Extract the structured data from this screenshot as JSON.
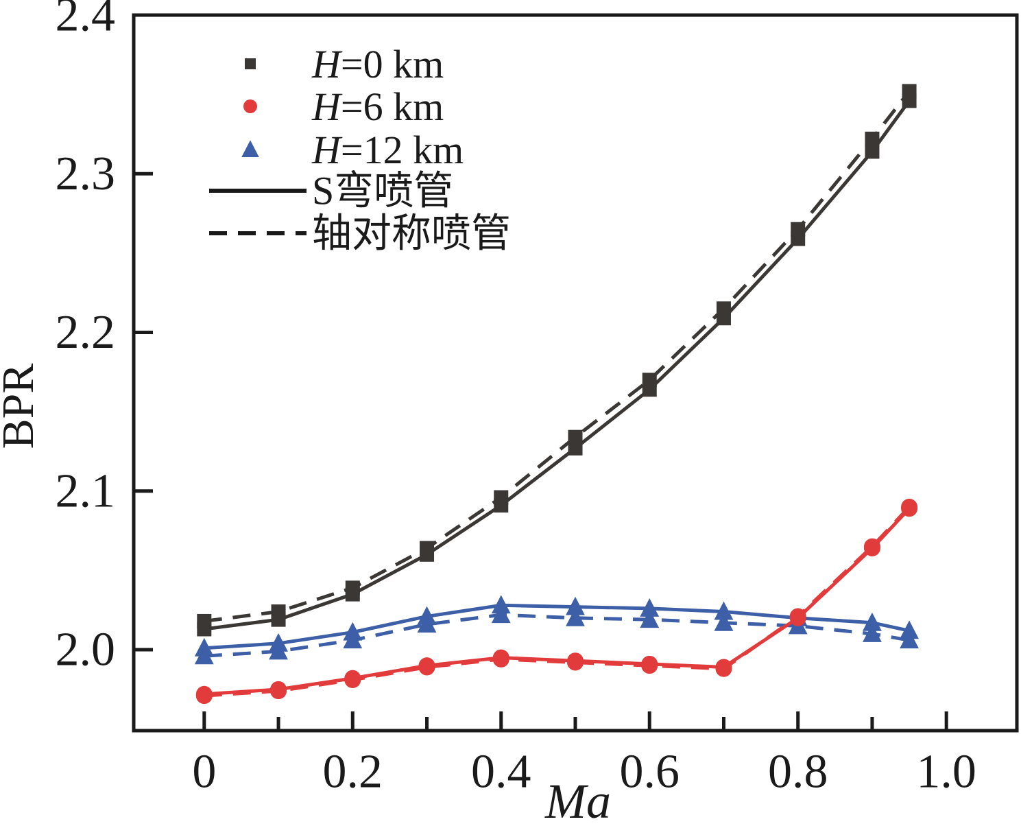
{
  "chart_data": {
    "type": "line",
    "title": "",
    "xlabel": "Ma",
    "ylabel": "BPR",
    "axis_color": "#1a1a1a",
    "xlim": [
      -0.095,
      1.095
    ],
    "ylim": [
      1.949,
      2.4
    ],
    "grid": false,
    "x_ticks": [
      0,
      0.2,
      0.4,
      0.6,
      0.8,
      1.0
    ],
    "x_tick_labels": [
      "0",
      "0.2",
      "0.4",
      "0.6",
      "0.8",
      "1.0"
    ],
    "x_minor_ticks": [
      0.1,
      0.3,
      0.5,
      0.7,
      0.9
    ],
    "y_ticks": [
      2.4,
      2.3,
      2.2,
      2.1,
      2.0
    ],
    "y_tick_labels": [
      "2.4",
      "2.3",
      "2.2",
      "2.1",
      "2.0"
    ],
    "x": [
      0,
      0.1,
      0.2,
      0.3,
      0.4,
      0.5,
      0.6,
      0.7,
      0.8,
      0.9,
      0.95
    ],
    "series": [
      {
        "name": "H=0 km S弯喷管",
        "marker": "square",
        "line": "solid",
        "color": "#3b3734",
        "values": [
          2.013,
          2.019,
          2.035,
          2.06,
          2.091,
          2.127,
          2.164,
          2.209,
          2.259,
          2.314,
          2.346
        ]
      },
      {
        "name": "H=0 km 轴对称喷管",
        "marker": "square",
        "line": "dashed",
        "color": "#3b3734",
        "values": [
          2.018,
          2.024,
          2.039,
          2.064,
          2.096,
          2.134,
          2.17,
          2.215,
          2.265,
          2.322,
          2.352
        ]
      },
      {
        "name": "H=12 km S弯喷管",
        "marker": "triangle",
        "line": "solid",
        "color": "#3c5fa8",
        "values": [
          2.001,
          2.004,
          2.011,
          2.021,
          2.028,
          2.027,
          2.026,
          2.024,
          2.02,
          2.017,
          2.012
        ]
      },
      {
        "name": "H=12 km 轴对称喷管",
        "marker": "triangle",
        "line": "dashed",
        "color": "#3c5fa8",
        "values": [
          1.996,
          1.999,
          2.006,
          2.016,
          2.022,
          2.02,
          2.019,
          2.017,
          2.015,
          2.01,
          2.006
        ]
      },
      {
        "name": "H=6 km S弯喷管",
        "marker": "circle",
        "line": "solid",
        "color": "#e23b3b",
        "values": [
          1.972,
          1.975,
          1.982,
          1.99,
          1.995,
          1.993,
          1.991,
          1.989,
          2.02,
          2.064,
          2.089
        ]
      },
      {
        "name": "H=6 km 轴对称喷管",
        "marker": "circle",
        "line": "dashed",
        "color": "#e23b3b",
        "values": [
          1.971,
          1.974,
          1.981,
          1.989,
          1.994,
          1.992,
          1.99,
          1.988,
          2.021,
          2.065,
          2.09
        ]
      }
    ],
    "legend": {
      "position": "upper-left-inside",
      "items": [
        {
          "label": "H=0 km",
          "kind": "marker",
          "marker": "square",
          "color": "#3b3734"
        },
        {
          "label": "H=6 km",
          "kind": "marker",
          "marker": "circle",
          "color": "#e23b3b"
        },
        {
          "label": "H=12 km",
          "kind": "marker",
          "marker": "triangle",
          "color": "#3c5fa8"
        },
        {
          "label": "S弯喷管",
          "kind": "line",
          "line": "solid",
          "color": "#1a1a1a"
        },
        {
          "label": "轴对称喷管",
          "kind": "line",
          "line": "dashed",
          "color": "#1a1a1a"
        }
      ]
    }
  }
}
